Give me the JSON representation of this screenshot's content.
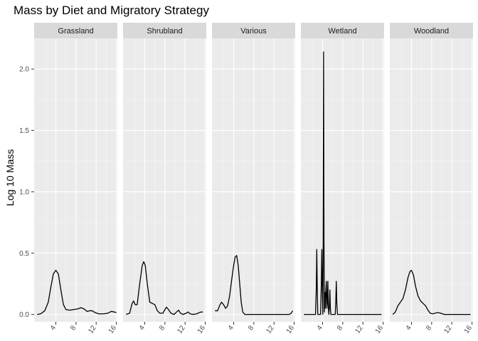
{
  "chart_data": {
    "type": "line",
    "title": "Mass by Diet and Migratory Strategy",
    "xlabel": "",
    "ylabel": "Log 10 Mass",
    "xlim": [
      -0.3,
      16.2
    ],
    "ylim": [
      -0.06,
      2.25
    ],
    "x_ticks": [
      4,
      8,
      12,
      16
    ],
    "x_tick_labels": [
      "4",
      "8",
      "12",
      "16"
    ],
    "y_ticks": [
      0.0,
      0.5,
      1.0,
      1.5,
      2.0
    ],
    "y_tick_labels": [
      "0.0",
      "0.5",
      "1.0",
      "1.5",
      "2.0"
    ],
    "grid": true,
    "panels": [
      {
        "name": "Grassland",
        "points": [
          [
            0.3,
            0.0
          ],
          [
            1.0,
            0.005
          ],
          [
            1.8,
            0.03
          ],
          [
            2.5,
            0.1
          ],
          [
            3.0,
            0.22
          ],
          [
            3.5,
            0.33
          ],
          [
            4.0,
            0.36
          ],
          [
            4.5,
            0.33
          ],
          [
            5.0,
            0.2
          ],
          [
            5.5,
            0.08
          ],
          [
            6.0,
            0.04
          ],
          [
            6.8,
            0.035
          ],
          [
            7.5,
            0.04
          ],
          [
            8.3,
            0.045
          ],
          [
            9.0,
            0.055
          ],
          [
            9.6,
            0.045
          ],
          [
            10.2,
            0.025
          ],
          [
            10.7,
            0.03
          ],
          [
            11.2,
            0.03
          ],
          [
            11.8,
            0.015
          ],
          [
            12.5,
            0.005
          ],
          [
            13.5,
            0.005
          ],
          [
            14.3,
            0.01
          ],
          [
            15.0,
            0.025
          ],
          [
            15.6,
            0.02
          ],
          [
            16.0,
            0.015
          ]
        ]
      },
      {
        "name": "Shrubland",
        "points": [
          [
            0.3,
            0.0
          ],
          [
            1.0,
            0.01
          ],
          [
            1.5,
            0.09
          ],
          [
            1.8,
            0.11
          ],
          [
            2.1,
            0.08
          ],
          [
            2.5,
            0.08
          ],
          [
            3.0,
            0.25
          ],
          [
            3.5,
            0.4
          ],
          [
            3.8,
            0.43
          ],
          [
            4.1,
            0.4
          ],
          [
            4.5,
            0.25
          ],
          [
            5.0,
            0.1
          ],
          [
            5.5,
            0.09
          ],
          [
            6.0,
            0.08
          ],
          [
            6.5,
            0.03
          ],
          [
            7.0,
            0.01
          ],
          [
            7.6,
            0.01
          ],
          [
            8.0,
            0.04
          ],
          [
            8.3,
            0.06
          ],
          [
            8.7,
            0.04
          ],
          [
            9.2,
            0.01
          ],
          [
            9.8,
            0.0
          ],
          [
            10.3,
            0.02
          ],
          [
            10.7,
            0.035
          ],
          [
            11.1,
            0.01
          ],
          [
            11.6,
            0.0
          ],
          [
            12.2,
            0.01
          ],
          [
            12.6,
            0.02
          ],
          [
            13.0,
            0.005
          ],
          [
            13.6,
            0.0
          ],
          [
            14.3,
            0.005
          ],
          [
            14.8,
            0.015
          ],
          [
            15.2,
            0.02
          ],
          [
            15.5,
            0.02
          ]
        ]
      },
      {
        "name": "Various",
        "points": [
          [
            0.3,
            0.03
          ],
          [
            0.8,
            0.03
          ],
          [
            1.3,
            0.08
          ],
          [
            1.6,
            0.1
          ],
          [
            2.0,
            0.08
          ],
          [
            2.4,
            0.05
          ],
          [
            2.8,
            0.07
          ],
          [
            3.2,
            0.15
          ],
          [
            3.6,
            0.28
          ],
          [
            4.0,
            0.4
          ],
          [
            4.3,
            0.47
          ],
          [
            4.6,
            0.48
          ],
          [
            4.9,
            0.4
          ],
          [
            5.2,
            0.25
          ],
          [
            5.5,
            0.1
          ],
          [
            5.8,
            0.02
          ],
          [
            6.2,
            0.0
          ],
          [
            8.0,
            0.0
          ],
          [
            10.0,
            0.0
          ],
          [
            12.0,
            0.0
          ],
          [
            14.0,
            0.0
          ],
          [
            15.0,
            0.0
          ],
          [
            15.4,
            0.01
          ],
          [
            15.7,
            0.03
          ]
        ]
      },
      {
        "name": "Wetland",
        "points": [
          [
            0.3,
            0.0
          ],
          [
            2.0,
            0.0
          ],
          [
            2.6,
            0.0
          ],
          [
            2.75,
            0.2
          ],
          [
            2.85,
            0.53
          ],
          [
            2.95,
            0.2
          ],
          [
            3.05,
            0.0
          ],
          [
            3.6,
            0.0
          ],
          [
            3.75,
            0.25
          ],
          [
            3.85,
            0.53
          ],
          [
            3.95,
            0.2
          ],
          [
            4.05,
            0.0
          ],
          [
            4.12,
            0.6
          ],
          [
            4.2,
            2.14
          ],
          [
            4.28,
            0.6
          ],
          [
            4.36,
            0.02
          ],
          [
            4.45,
            0.18
          ],
          [
            4.55,
            0.05
          ],
          [
            4.65,
            0.2
          ],
          [
            4.75,
            0.27
          ],
          [
            4.85,
            0.05
          ],
          [
            4.95,
            0.1
          ],
          [
            5.05,
            0.27
          ],
          [
            5.15,
            0.05
          ],
          [
            5.25,
            0.0
          ],
          [
            5.35,
            0.06
          ],
          [
            5.45,
            0.2
          ],
          [
            5.55,
            0.05
          ],
          [
            5.65,
            0.0
          ],
          [
            6.5,
            0.0
          ],
          [
            6.62,
            0.1
          ],
          [
            6.72,
            0.27
          ],
          [
            6.82,
            0.1
          ],
          [
            6.95,
            0.0
          ],
          [
            8.0,
            0.0
          ],
          [
            10.0,
            0.0
          ],
          [
            12.0,
            0.0
          ],
          [
            14.0,
            0.0
          ],
          [
            15.7,
            0.0
          ]
        ]
      },
      {
        "name": "Woodland",
        "points": [
          [
            0.3,
            0.0
          ],
          [
            0.8,
            0.02
          ],
          [
            1.3,
            0.07
          ],
          [
            1.8,
            0.1
          ],
          [
            2.3,
            0.13
          ],
          [
            2.8,
            0.2
          ],
          [
            3.3,
            0.3
          ],
          [
            3.7,
            0.35
          ],
          [
            4.0,
            0.36
          ],
          [
            4.4,
            0.32
          ],
          [
            4.8,
            0.23
          ],
          [
            5.3,
            0.15
          ],
          [
            5.8,
            0.11
          ],
          [
            6.3,
            0.09
          ],
          [
            6.8,
            0.07
          ],
          [
            7.2,
            0.04
          ],
          [
            7.7,
            0.01
          ],
          [
            8.2,
            0.005
          ],
          [
            8.7,
            0.01
          ],
          [
            9.2,
            0.015
          ],
          [
            9.8,
            0.01
          ],
          [
            10.5,
            0.0
          ],
          [
            12.0,
            0.0
          ],
          [
            14.0,
            0.0
          ],
          [
            15.7,
            0.0
          ]
        ]
      }
    ]
  }
}
